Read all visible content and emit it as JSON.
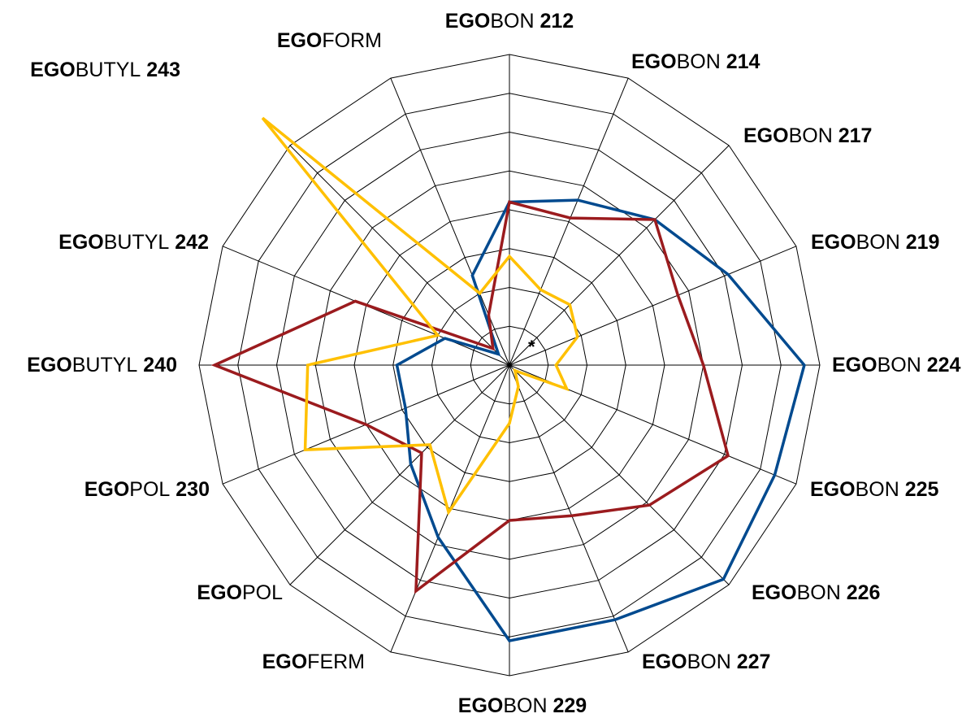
{
  "chart_data": {
    "type": "radar",
    "axes": [
      {
        "prefix": "EGO",
        "suffix": "BON",
        "number": "212"
      },
      {
        "prefix": "EGO",
        "suffix": "BON",
        "number": "214"
      },
      {
        "prefix": "EGO",
        "suffix": "BON",
        "number": "217"
      },
      {
        "prefix": "EGO",
        "suffix": "BON",
        "number": "219"
      },
      {
        "prefix": "EGO",
        "suffix": "BON",
        "number": "224"
      },
      {
        "prefix": "EGO",
        "suffix": "BON",
        "number": "225"
      },
      {
        "prefix": "EGO",
        "suffix": "BON",
        "number": "226"
      },
      {
        "prefix": "EGO",
        "suffix": "BON",
        "number": "227"
      },
      {
        "prefix": "EGO",
        "suffix": "BON",
        "number": "229"
      },
      {
        "prefix": "EGO",
        "suffix": "FERM",
        "number": ""
      },
      {
        "prefix": "EGO",
        "suffix": "POL",
        "number": ""
      },
      {
        "prefix": "EGO",
        "suffix": "POL",
        "number": "230"
      },
      {
        "prefix": "EGO",
        "suffix": "BUTYL",
        "number": "240"
      },
      {
        "prefix": "EGO",
        "suffix": "BUTYL",
        "number": "242"
      },
      {
        "prefix": "EGO",
        "suffix": "BUTYL",
        "number": "243"
      },
      {
        "prefix": "EGO",
        "suffix": "FORM",
        "number": ""
      }
    ],
    "rings": 8,
    "range": [
      0,
      8
    ],
    "grid": true,
    "center_marker": "*",
    "series": [
      {
        "color": "#004A8F",
        "values": [
          4.2,
          4.6,
          5.3,
          6.1,
          7.6,
          7.4,
          7.8,
          7.1,
          7.1,
          4.8,
          3.6,
          2.9,
          2.9,
          1.8,
          0.4,
          2.5
        ]
      },
      {
        "color": "#9B1B1E",
        "values": [
          4.2,
          4.1,
          5.3,
          4.7,
          5.0,
          6.1,
          5.1,
          4.2,
          4.0,
          6.3,
          3.2,
          4.0,
          7.6,
          4.3,
          0.6,
          1.4
        ]
      },
      {
        "color": "#FFC000",
        "values": [
          2.8,
          2.1,
          2.2,
          1.9,
          1.2,
          1.6,
          0.2,
          0.6,
          1.5,
          4.1,
          2.9,
          5.7,
          5.2,
          2.0,
          9.0,
          2.0
        ]
      }
    ]
  }
}
